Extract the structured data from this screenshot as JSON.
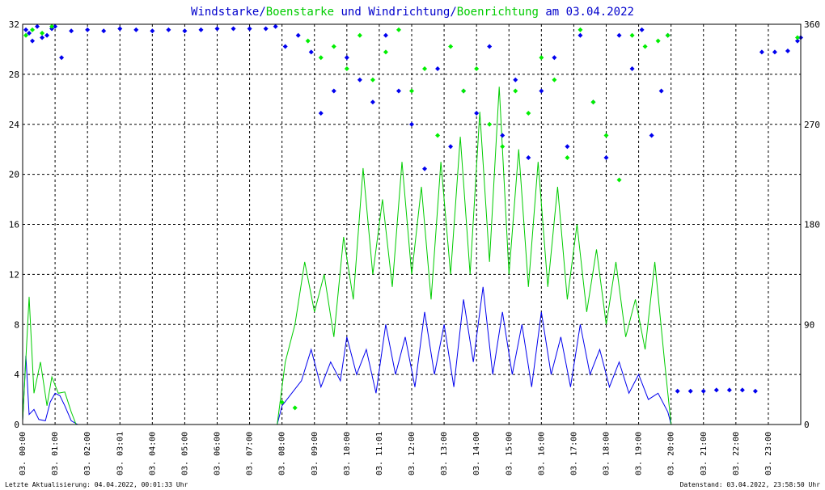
{
  "chart_data": {
    "type": "scatter",
    "title_parts": [
      {
        "text": "Windstarke",
        "color": "#0000cc"
      },
      {
        "text": "/",
        "color": "#0000cc"
      },
      {
        "text": "Boenstarke",
        "color": "#00cc00"
      },
      {
        "text": " und ",
        "color": "#0000cc"
      },
      {
        "text": "Windrichtung",
        "color": "#0000cc"
      },
      {
        "text": "/",
        "color": "#0000cc"
      },
      {
        "text": "Boenrichtung",
        "color": "#00cc00"
      },
      {
        "text": " am 03.04.2022",
        "color": "#0000cc"
      }
    ],
    "footer_left": "Letzte Aktualisierung: 04.04.2022, 00:01:33 Uhr",
    "footer_right": "Datenstand: 03.04.2022, 23:58:50 Uhr",
    "ylim_left": [
      0,
      32
    ],
    "ylim_right": [
      0,
      360
    ],
    "yticks_left": [
      "0",
      "4",
      "8",
      "12",
      "16",
      "20",
      "24",
      "28",
      "32"
    ],
    "yticks_right": [
      "0",
      "90",
      "180",
      "270",
      "360"
    ],
    "xlim_hours": [
      0,
      24
    ],
    "xticks": [
      {
        "h": 0,
        "label": "03. 00:00"
      },
      {
        "h": 1,
        "label": "03. 01:00"
      },
      {
        "h": 2,
        "label": "03. 02:00"
      },
      {
        "h": 3,
        "label": "03. 03:01"
      },
      {
        "h": 4,
        "label": "03. 04:00"
      },
      {
        "h": 5,
        "label": "03. 05:00"
      },
      {
        "h": 6,
        "label": "03. 06:00"
      },
      {
        "h": 7,
        "label": "03. 07:00"
      },
      {
        "h": 8,
        "label": "03. 08:00"
      },
      {
        "h": 9,
        "label": "03. 09:00"
      },
      {
        "h": 10,
        "label": "03. 10:00"
      },
      {
        "h": 11,
        "label": "03. 11:01"
      },
      {
        "h": 12,
        "label": "03. 12:00"
      },
      {
        "h": 13,
        "label": "03. 13:00"
      },
      {
        "h": 14,
        "label": "03. 14:00"
      },
      {
        "h": 15,
        "label": "03. 15:00"
      },
      {
        "h": 16,
        "label": "03. 16:00"
      },
      {
        "h": 17,
        "label": "03. 17:00"
      },
      {
        "h": 18,
        "label": "03. 18:00"
      },
      {
        "h": 19,
        "label": "03. 19:00"
      },
      {
        "h": 20,
        "label": "03. 20:00"
      },
      {
        "h": 21,
        "label": "03. 21:00"
      },
      {
        "h": 22,
        "label": "03. 22:00"
      },
      {
        "h": 23,
        "label": "03. 23:00"
      }
    ],
    "grid": true,
    "series": [
      {
        "key": "windstarke",
        "name": "Windstarke",
        "color": "#0000ee",
        "mark": "line",
        "points": [
          [
            0,
            0.3
          ],
          [
            0.1,
            5.5
          ],
          [
            0.2,
            0.8
          ],
          [
            0.35,
            1.2
          ],
          [
            0.5,
            0.4
          ],
          [
            0.7,
            0.3
          ],
          [
            0.85,
            1.8
          ],
          [
            1,
            2.5
          ],
          [
            1.15,
            2.3
          ],
          [
            1.3,
            1.5
          ],
          [
            1.5,
            0.3
          ],
          [
            1.7,
            0
          ],
          [
            7.85,
            0
          ],
          [
            8.0,
            1.5
          ],
          [
            8.3,
            2.5
          ],
          [
            8.6,
            3.5
          ],
          [
            8.9,
            6
          ],
          [
            9.2,
            3
          ],
          [
            9.5,
            5
          ],
          [
            9.8,
            3.5
          ],
          [
            10.0,
            7
          ],
          [
            10.3,
            4
          ],
          [
            10.6,
            6
          ],
          [
            10.9,
            2.5
          ],
          [
            11.2,
            8
          ],
          [
            11.5,
            4
          ],
          [
            11.8,
            7
          ],
          [
            12.1,
            3
          ],
          [
            12.4,
            9
          ],
          [
            12.7,
            4
          ],
          [
            13.0,
            8
          ],
          [
            13.3,
            3
          ],
          [
            13.6,
            10
          ],
          [
            13.9,
            5
          ],
          [
            14.2,
            11
          ],
          [
            14.5,
            4
          ],
          [
            14.8,
            9
          ],
          [
            15.1,
            4
          ],
          [
            15.4,
            8
          ],
          [
            15.7,
            3
          ],
          [
            16.0,
            9
          ],
          [
            16.3,
            4
          ],
          [
            16.6,
            7
          ],
          [
            16.9,
            3
          ],
          [
            17.2,
            8
          ],
          [
            17.5,
            4
          ],
          [
            17.8,
            6
          ],
          [
            18.1,
            3
          ],
          [
            18.4,
            5
          ],
          [
            18.7,
            2.5
          ],
          [
            19.0,
            4
          ],
          [
            19.3,
            2
          ],
          [
            19.6,
            2.5
          ],
          [
            19.9,
            1
          ],
          [
            20.0,
            0
          ]
        ]
      },
      {
        "key": "boenstarke",
        "name": "Boenstarke",
        "color": "#00cc00",
        "mark": "line",
        "points": [
          [
            0,
            0.3
          ],
          [
            0.2,
            10.2
          ],
          [
            0.35,
            2.5
          ],
          [
            0.55,
            5
          ],
          [
            0.75,
            1.5
          ],
          [
            0.9,
            3.8
          ],
          [
            1.1,
            2.5
          ],
          [
            1.3,
            2.6
          ],
          [
            1.5,
            1
          ],
          [
            1.65,
            0
          ],
          [
            7.85,
            0
          ],
          [
            8.1,
            5
          ],
          [
            8.4,
            8
          ],
          [
            8.7,
            13
          ],
          [
            9.0,
            9
          ],
          [
            9.3,
            12
          ],
          [
            9.6,
            7
          ],
          [
            9.9,
            15
          ],
          [
            10.2,
            10
          ],
          [
            10.5,
            20.5
          ],
          [
            10.8,
            12
          ],
          [
            11.1,
            18
          ],
          [
            11.4,
            11
          ],
          [
            11.7,
            21
          ],
          [
            12.0,
            12
          ],
          [
            12.3,
            19
          ],
          [
            12.6,
            10
          ],
          [
            12.9,
            21
          ],
          [
            13.2,
            12
          ],
          [
            13.5,
            23
          ],
          [
            13.8,
            12
          ],
          [
            14.1,
            25
          ],
          [
            14.4,
            13
          ],
          [
            14.7,
            27
          ],
          [
            15.0,
            12
          ],
          [
            15.3,
            22
          ],
          [
            15.6,
            11
          ],
          [
            15.9,
            21
          ],
          [
            16.2,
            11
          ],
          [
            16.5,
            19
          ],
          [
            16.8,
            10
          ],
          [
            17.1,
            16
          ],
          [
            17.4,
            9
          ],
          [
            17.7,
            14
          ],
          [
            18.0,
            8
          ],
          [
            18.3,
            13
          ],
          [
            18.6,
            7
          ],
          [
            18.9,
            10
          ],
          [
            19.2,
            6
          ],
          [
            19.5,
            13
          ],
          [
            19.8,
            5
          ],
          [
            20.0,
            0
          ]
        ]
      },
      {
        "key": "windrichtung",
        "name": "Windrichtung",
        "color": "#0000ee",
        "mark": "diamond",
        "points": [
          [
            0.1,
            355
          ],
          [
            0.2,
            352
          ],
          [
            0.3,
            345
          ],
          [
            0.45,
            358
          ],
          [
            0.6,
            348
          ],
          [
            0.75,
            350
          ],
          [
            0.9,
            356
          ],
          [
            1.0,
            358
          ],
          [
            1.2,
            330
          ],
          [
            1.5,
            354
          ],
          [
            2.0,
            355
          ],
          [
            2.5,
            354
          ],
          [
            3.0,
            356
          ],
          [
            3.5,
            355
          ],
          [
            4.0,
            354
          ],
          [
            4.5,
            355
          ],
          [
            5.0,
            354
          ],
          [
            5.5,
            355
          ],
          [
            6.0,
            356
          ],
          [
            6.5,
            356
          ],
          [
            7.0,
            356
          ],
          [
            7.5,
            356
          ],
          [
            7.8,
            358
          ],
          [
            8.1,
            340
          ],
          [
            8.5,
            350
          ],
          [
            8.9,
            335
          ],
          [
            9.2,
            280
          ],
          [
            9.6,
            300
          ],
          [
            10.0,
            330
          ],
          [
            10.4,
            310
          ],
          [
            10.8,
            290
          ],
          [
            11.2,
            350
          ],
          [
            11.6,
            300
          ],
          [
            12.0,
            270
          ],
          [
            12.4,
            230
          ],
          [
            12.8,
            320
          ],
          [
            13.2,
            250
          ],
          [
            13.6,
            300
          ],
          [
            14.0,
            280
          ],
          [
            14.4,
            340
          ],
          [
            14.8,
            260
          ],
          [
            15.2,
            310
          ],
          [
            15.6,
            240
          ],
          [
            16.0,
            300
          ],
          [
            16.4,
            330
          ],
          [
            16.8,
            250
          ],
          [
            17.2,
            350
          ],
          [
            17.6,
            290
          ],
          [
            18.0,
            240
          ],
          [
            18.4,
            350
          ],
          [
            18.8,
            320
          ],
          [
            19.1,
            355
          ],
          [
            19.4,
            260
          ],
          [
            19.7,
            300
          ],
          [
            19.9,
            350
          ],
          [
            20.2,
            30
          ],
          [
            20.6,
            30
          ],
          [
            21.0,
            30
          ],
          [
            21.4,
            31
          ],
          [
            21.8,
            31
          ],
          [
            22.2,
            31
          ],
          [
            22.6,
            30
          ],
          [
            22.8,
            335
          ],
          [
            23.2,
            335
          ],
          [
            23.6,
            336
          ],
          [
            23.9,
            345
          ],
          [
            24.0,
            348
          ]
        ]
      },
      {
        "key": "boenrichtung",
        "name": "Boenrichtung",
        "color": "#00ee00",
        "mark": "diamond",
        "points": [
          [
            0.1,
            350
          ],
          [
            0.3,
            355
          ],
          [
            0.6,
            352
          ],
          [
            0.9,
            358
          ],
          [
            8.0,
            20
          ],
          [
            8.4,
            15
          ],
          [
            8.8,
            345
          ],
          [
            9.2,
            330
          ],
          [
            9.6,
            340
          ],
          [
            10.0,
            320
          ],
          [
            10.4,
            350
          ],
          [
            10.8,
            310
          ],
          [
            11.2,
            335
          ],
          [
            11.6,
            355
          ],
          [
            12.0,
            300
          ],
          [
            12.4,
            320
          ],
          [
            12.8,
            260
          ],
          [
            13.2,
            340
          ],
          [
            13.6,
            300
          ],
          [
            14.0,
            320
          ],
          [
            14.4,
            270
          ],
          [
            14.8,
            250
          ],
          [
            15.2,
            300
          ],
          [
            15.6,
            280
          ],
          [
            16.0,
            330
          ],
          [
            16.4,
            310
          ],
          [
            16.8,
            240
          ],
          [
            17.2,
            355
          ],
          [
            17.6,
            290
          ],
          [
            18.0,
            260
          ],
          [
            18.4,
            220
          ],
          [
            18.8,
            350
          ],
          [
            19.2,
            340
          ],
          [
            19.6,
            345
          ],
          [
            19.9,
            350
          ],
          [
            23.9,
            348
          ]
        ]
      }
    ]
  }
}
